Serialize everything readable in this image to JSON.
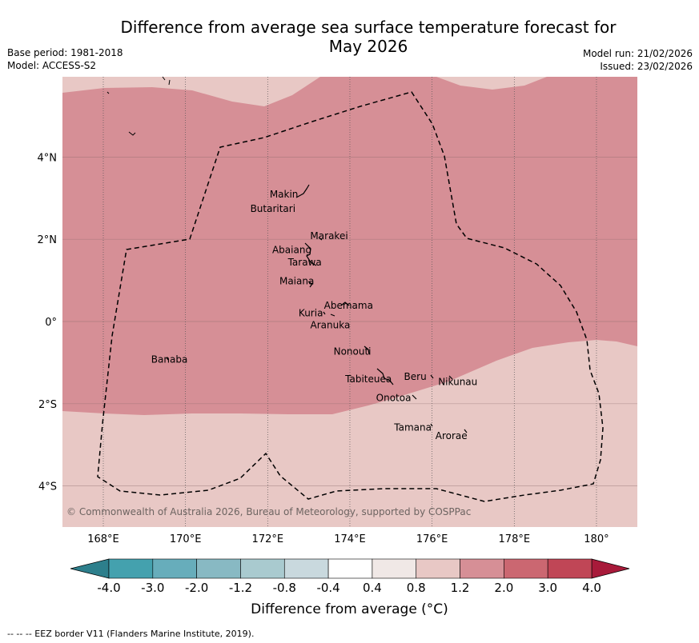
{
  "header": {
    "title_line1": "Difference from average sea surface temperature forecast for",
    "title_line2": "May 2026",
    "base_period": "Base period: 1981-2018",
    "model": "Model: ACCESS-S2",
    "model_run": "Model run: 21/02/2026",
    "issued": "Issued: 23/02/2026"
  },
  "map": {
    "lon_range": [
      167,
      181
    ],
    "lat_range": [
      -5,
      6
    ],
    "lon_ticks": [
      {
        "value": 168,
        "label": "168°E"
      },
      {
        "value": 170,
        "label": "170°E"
      },
      {
        "value": 172,
        "label": "172°E"
      },
      {
        "value": 174,
        "label": "174°E"
      },
      {
        "value": 176,
        "label": "176°E"
      },
      {
        "value": 178,
        "label": "178°E"
      },
      {
        "value": 180,
        "label": "180°"
      }
    ],
    "lat_ticks": [
      {
        "value": 4,
        "label": "4°N"
      },
      {
        "value": 2,
        "label": "2°N"
      },
      {
        "value": 0,
        "label": "0°"
      },
      {
        "value": -2,
        "label": "2°S"
      },
      {
        "value": -4,
        "label": "4°S"
      }
    ],
    "islands": [
      {
        "name": "Makin",
        "lon": 172.98,
        "lat": 3.15
      },
      {
        "name": "Butaritari",
        "lon": 172.75,
        "lat": 3.05
      },
      {
        "name": "Marakei",
        "lon": 173.3,
        "lat": 2.0
      },
      {
        "name": "Abaiang",
        "lon": 172.9,
        "lat": 1.8
      },
      {
        "name": "Tarawa",
        "lon": 173.0,
        "lat": 1.5
      },
      {
        "name": "Maiana",
        "lon": 173.0,
        "lat": 1.0
      },
      {
        "name": "Abemama",
        "lon": 173.85,
        "lat": 0.45
      },
      {
        "name": "Kuria",
        "lon": 173.4,
        "lat": 0.22
      },
      {
        "name": "Aranuka",
        "lon": 173.6,
        "lat": 0.17
      },
      {
        "name": "Nonouti",
        "lon": 174.45,
        "lat": -0.65
      },
      {
        "name": "Tabiteuea",
        "lon": 174.9,
        "lat": -1.3
      },
      {
        "name": "Beru",
        "lon": 175.98,
        "lat": -1.3
      },
      {
        "name": "Nikunau",
        "lon": 176.45,
        "lat": -1.35
      },
      {
        "name": "Onotoa",
        "lon": 175.55,
        "lat": -1.8
      },
      {
        "name": "Tamana",
        "lon": 175.98,
        "lat": -2.5
      },
      {
        "name": "Arorae",
        "lon": 176.82,
        "lat": -2.65
      },
      {
        "name": "Banaba",
        "lon": 169.55,
        "lat": -0.85
      }
    ],
    "copyright": "© Commonwealth of Australia 2026, Bureau of Meteorology, supported by COSPPac",
    "colors": {
      "band_0p8_1p2": "#e8c8c5",
      "band_1p2_2p0": "#d68f96",
      "eez": "#000000",
      "grid": "#8a6a6a"
    }
  },
  "colorbar": {
    "label": "Difference from average (°C)",
    "tick_labels": [
      "-4.0",
      "-3.0",
      "-2.0",
      "-1.2",
      "-0.8",
      "-0.4",
      "0.4",
      "0.8",
      "1.2",
      "2.0",
      "3.0",
      "4.0"
    ],
    "under_color": "#2d7f8c",
    "over_color": "#a81a3a",
    "bins": [
      {
        "from": "-4.0",
        "to": "-3.0",
        "color": "#44a1ae"
      },
      {
        "from": "-3.0",
        "to": "-2.0",
        "color": "#67adbb"
      },
      {
        "from": "-2.0",
        "to": "-1.2",
        "color": "#88b9c3"
      },
      {
        "from": "-1.2",
        "to": "-0.8",
        "color": "#a9cacf"
      },
      {
        "from": "-0.8",
        "to": "-0.4",
        "color": "#c9d9de"
      },
      {
        "from": "-0.4",
        "to": "0.4",
        "color": "#ffffff"
      },
      {
        "from": "0.4",
        "to": "0.8",
        "color": "#f0e8e6"
      },
      {
        "from": "0.8",
        "to": "1.2",
        "color": "#e8c8c5"
      },
      {
        "from": "1.2",
        "to": "2.0",
        "color": "#d68f96"
      },
      {
        "from": "2.0",
        "to": "3.0",
        "color": "#cb6771"
      },
      {
        "from": "3.0",
        "to": "4.0",
        "color": "#c04656"
      }
    ]
  },
  "footer": {
    "legend": "-- -- -- EEZ border V11 (Flanders Marine Institute, 2019)."
  }
}
